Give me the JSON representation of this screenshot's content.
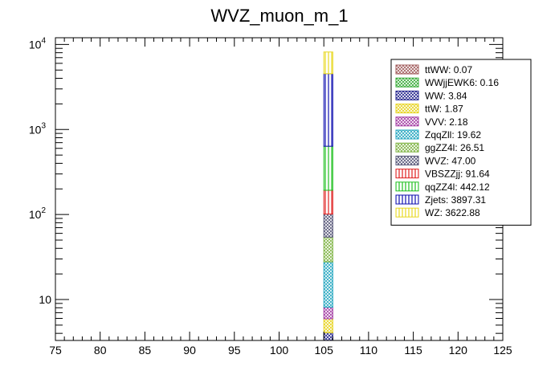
{
  "chart_data": {
    "type": "bar",
    "title": "WVZ_muon_m_1",
    "xlabel": "",
    "ylabel": "",
    "xlim": [
      75,
      125
    ],
    "x_major_ticks": [
      75,
      80,
      85,
      90,
      95,
      100,
      105,
      110,
      115,
      120,
      125
    ],
    "x_tick_labels": [
      "75",
      "80",
      "85",
      "90",
      "95",
      "100",
      "105",
      "110",
      "115",
      "120",
      "125"
    ],
    "yscale": "log",
    "ylim": [
      3.3,
      12000
    ],
    "y_tick_labels": [
      {
        "value": 10,
        "base": "10",
        "exp": ""
      },
      {
        "value": 100,
        "base": "10",
        "exp": "2"
      },
      {
        "value": 1000,
        "base": "10",
        "exp": "3"
      },
      {
        "value": 10000,
        "base": "10",
        "exp": "4"
      }
    ],
    "bin": [
      105,
      106
    ],
    "stacked": true,
    "series": [
      {
        "name": "ttWW",
        "value": 0.07,
        "label": "ttWW: 0.07",
        "color": "#a05a5a",
        "pattern": "cross",
        "stack": true
      },
      {
        "name": "WWjjEWK6",
        "value": 0.16,
        "label": "WWjjEWK6: 0.16",
        "color": "#33aa33",
        "pattern": "cross",
        "stack": true
      },
      {
        "name": "WW",
        "value": 3.84,
        "label": "WW: 3.84",
        "color": "#1f1f8a",
        "pattern": "cross",
        "stack": true
      },
      {
        "name": "ttW",
        "value": 1.87,
        "label": "ttW: 1.87",
        "color": "#e6d21a",
        "pattern": "cross",
        "stack": true
      },
      {
        "name": "VVV",
        "value": 2.18,
        "label": "VVV: 2.18",
        "color": "#a23aa2",
        "pattern": "cross",
        "stack": true
      },
      {
        "name": "ZqqZll",
        "value": 19.62,
        "label": "ZqqZll: 19.62",
        "color": "#22a6bf",
        "pattern": "cross",
        "stack": true
      },
      {
        "name": "ggZZ4l",
        "value": 26.51,
        "label": "ggZZ4l: 26.51",
        "color": "#7eb342",
        "pattern": "cross",
        "stack": true
      },
      {
        "name": "WVZ",
        "value": 47.0,
        "label": "WVZ: 47.00",
        "color": "#555577",
        "pattern": "cross",
        "stack": true
      },
      {
        "name": "VBSZZjj",
        "value": 91.64,
        "label": "VBSZZjj: 91.64",
        "color": "#e02020",
        "pattern": "vertical",
        "stack": true
      },
      {
        "name": "qqZZ4l",
        "value": 442.12,
        "label": "qqZZ4l: 442.12",
        "color": "#20c020",
        "pattern": "vertical",
        "stack": true
      },
      {
        "name": "Zjets",
        "value": 3897.31,
        "label": "Zjets: 3897.31",
        "color": "#1010b0",
        "pattern": "vertical",
        "stack": true
      },
      {
        "name": "WZ",
        "value": 3622.88,
        "label": "WZ: 3622.88",
        "color": "#e8d820",
        "pattern": "vertical",
        "stack": true
      }
    ],
    "legend_position": "top-right"
  }
}
